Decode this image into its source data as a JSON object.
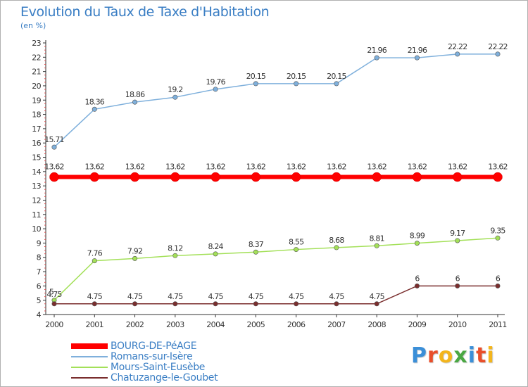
{
  "title": "Evolution du Taux de Taxe d'Habitation",
  "subtitle": "(en %)",
  "brand": {
    "letters": [
      {
        "ch": "P",
        "color": "#3b8fd8"
      },
      {
        "ch": "r",
        "color": "#e94e2a"
      },
      {
        "ch": "o",
        "color": "#f3b51c"
      },
      {
        "ch": "x",
        "color": "#4aa843"
      },
      {
        "ch": "i",
        "color": "#3b8fd8"
      },
      {
        "ch": "t",
        "color": "#e94e2a"
      },
      {
        "ch": "i",
        "color": "#f3b51c"
      }
    ]
  },
  "chart_data": {
    "type": "line",
    "title": "Evolution du Taux de Taxe d'Habitation",
    "ylabel": "(en %)",
    "xlabel": "",
    "ylim": [
      4,
      23
    ],
    "yticks": [
      4,
      5,
      6,
      7,
      8,
      9,
      10,
      11,
      12,
      13,
      14,
      15,
      16,
      17,
      18,
      19,
      20,
      21,
      22,
      23
    ],
    "categories": [
      "2000",
      "2001",
      "2002",
      "2003",
      "2004",
      "2005",
      "2006",
      "2007",
      "2008",
      "2009",
      "2010",
      "2011"
    ],
    "series": [
      {
        "name": "BOURG-DE-PéAGE",
        "color": "#ff0000",
        "values": [
          13.62,
          13.62,
          13.62,
          13.62,
          13.62,
          13.62,
          13.62,
          13.62,
          13.62,
          13.62,
          13.62,
          13.62
        ],
        "labels": [
          "13.62",
          "13.62",
          "13.62",
          "13.62",
          "13.62",
          "13.62",
          "13.62",
          "13.62",
          "13.62",
          "13.62",
          "13.62",
          "13.62"
        ]
      },
      {
        "name": "Romans-sur-Isère",
        "color": "#7fb0dc",
        "values": [
          15.71,
          18.36,
          18.86,
          19.2,
          19.76,
          20.15,
          20.15,
          20.15,
          21.96,
          21.96,
          22.22,
          22.22
        ],
        "labels": [
          "15.71",
          "18.36",
          "18.86",
          "19.2",
          "19.76",
          "20.15",
          "20.15",
          "20.15",
          "21.96",
          "21.96",
          "22.22",
          "22.22"
        ]
      },
      {
        "name": "Mours-Saint-Eusèbe",
        "color": "#a3e058",
        "values": [
          5,
          7.76,
          7.92,
          8.12,
          8.24,
          8.37,
          8.55,
          8.68,
          8.81,
          8.99,
          9.17,
          9.35
        ],
        "labels": [
          "5",
          "7.76",
          "7.92",
          "8.12",
          "8.24",
          "8.37",
          "8.55",
          "8.68",
          "8.81",
          "8.99",
          "9.17",
          "9.35"
        ]
      },
      {
        "name": "Chatuzange-le-Goubet",
        "color": "#7a2e2e",
        "values": [
          4.75,
          4.75,
          4.75,
          4.75,
          4.75,
          4.75,
          4.75,
          4.75,
          4.75,
          6,
          6,
          6
        ],
        "labels": [
          "4.75",
          "4.75",
          "4.75",
          "4.75",
          "4.75",
          "4.75",
          "4.75",
          "4.75",
          "4.75",
          "6",
          "6",
          "6"
        ]
      }
    ],
    "legend_position": "bottom-left",
    "grid": false
  }
}
